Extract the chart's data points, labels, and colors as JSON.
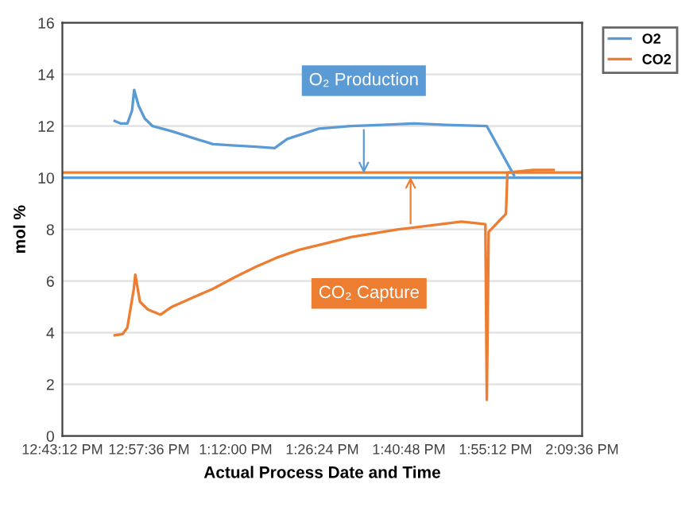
{
  "chart_data": {
    "type": "line",
    "xlabel": "Actual Process Date and Time",
    "ylabel": "mol %",
    "xlim": [
      12.72,
      14.16
    ],
    "ylim": [
      0,
      16
    ],
    "yticks": [
      0,
      2,
      4,
      6,
      8,
      10,
      12,
      14,
      16
    ],
    "xticks": [
      {
        "value": 12.72,
        "label": "12:43:12 PM"
      },
      {
        "value": 12.96,
        "label": "12:57:36 PM"
      },
      {
        "value": 13.2,
        "label": "1:12:00 PM"
      },
      {
        "value": 13.44,
        "label": "1:26:24 PM"
      },
      {
        "value": 13.68,
        "label": "1:40:48 PM"
      },
      {
        "value": 13.92,
        "label": "1:55:12 PM"
      },
      {
        "value": 14.16,
        "label": "2:09:36 PM"
      }
    ],
    "grid": "y",
    "legend": "top right",
    "marker": "none",
    "line_style": "solid",
    "series": [
      {
        "name": "O2",
        "color": "#5b9bd5",
        "x": [
          12.865,
          12.882,
          12.9,
          12.913,
          12.919,
          12.931,
          12.948,
          12.97,
          13.023,
          13.08,
          13.137,
          13.198,
          13.256,
          13.308,
          13.343,
          13.431,
          13.519,
          13.607,
          13.695,
          13.782,
          13.896,
          13.971
        ],
        "values": [
          12.2,
          12.1,
          12.1,
          12.6,
          13.4,
          12.8,
          12.3,
          12.0,
          11.8,
          11.55,
          11.3,
          11.25,
          11.2,
          11.15,
          11.5,
          11.9,
          12.0,
          12.05,
          12.1,
          12.05,
          12.0,
          10.1
        ]
      },
      {
        "name": "CO2",
        "color": "#ed7d31",
        "x": [
          12.865,
          12.887,
          12.9,
          12.918,
          12.922,
          12.935,
          12.957,
          12.992,
          13.023,
          13.08,
          13.137,
          13.198,
          13.256,
          13.313,
          13.374,
          13.462,
          13.519,
          13.651,
          13.826,
          13.892,
          13.896,
          13.901,
          13.949,
          13.953,
          14.024,
          14.081
        ],
        "values": [
          3.9,
          3.95,
          4.2,
          5.7,
          6.25,
          5.2,
          4.9,
          4.7,
          5.0,
          5.35,
          5.7,
          6.15,
          6.55,
          6.9,
          7.2,
          7.5,
          7.7,
          8.0,
          8.3,
          8.2,
          1.4,
          7.9,
          8.6,
          10.2,
          10.3,
          10.3
        ]
      }
    ],
    "ref_lines": [
      {
        "axis": "y",
        "value": 10,
        "color": "#5b9bd5"
      },
      {
        "axis": "y",
        "value": 10.2,
        "color": "#ed7d31"
      }
    ],
    "annotations": [
      "O₂ Production",
      "CO₂ Capture"
    ]
  }
}
